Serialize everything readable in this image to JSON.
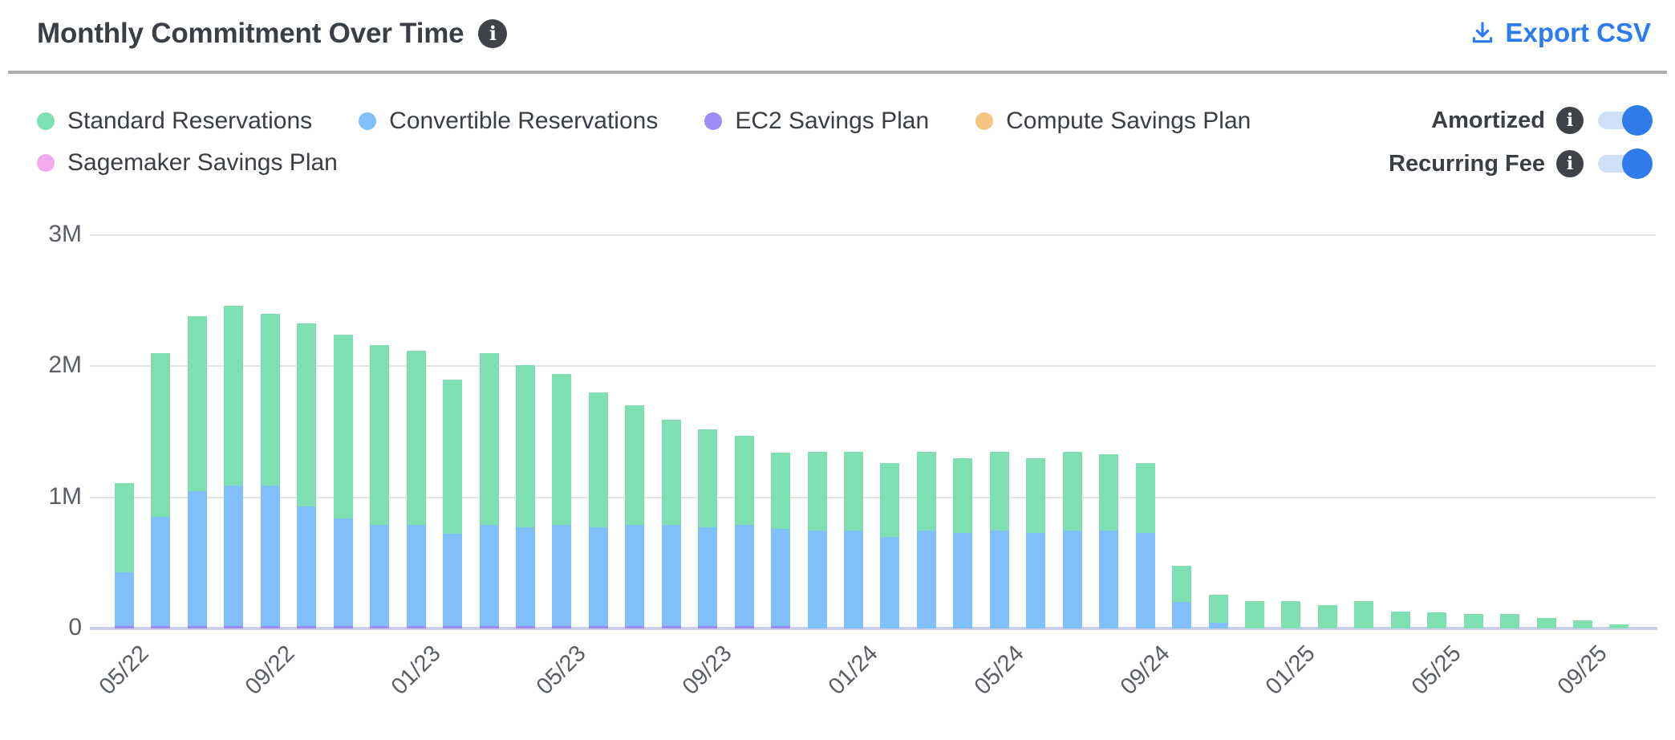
{
  "header": {
    "title": "Monthly Commitment Over Time",
    "export_label": "Export CSV"
  },
  "legend": {
    "items": [
      {
        "label": "Standard Reservations",
        "color": "#7edfb0"
      },
      {
        "label": "Convertible Reservations",
        "color": "#7fbffc"
      },
      {
        "label": "EC2 Savings Plan",
        "color": "#9e8df2"
      },
      {
        "label": "Compute Savings Plan",
        "color": "#f6c581"
      },
      {
        "label": "Sagemaker Savings Plan",
        "color": "#f2a9ee"
      }
    ]
  },
  "toggles": [
    {
      "label": "Amortized",
      "state": "on"
    },
    {
      "label": "Recurring Fee",
      "state": "on"
    }
  ],
  "chart_data": {
    "type": "bar",
    "stacked": true,
    "unit": "millions USD",
    "ylim": [
      0,
      3000000
    ],
    "y_ticks": [
      "0",
      "1M",
      "2M",
      "3M"
    ],
    "grid": "horizontal",
    "legend_position": "top-left",
    "x": [
      "05/22",
      "06/22",
      "07/22",
      "08/22",
      "09/22",
      "10/22",
      "11/22",
      "12/22",
      "01/23",
      "02/23",
      "03/23",
      "04/23",
      "05/23",
      "06/23",
      "07/23",
      "08/23",
      "09/23",
      "10/23",
      "11/23",
      "12/23",
      "01/24",
      "02/24",
      "03/24",
      "04/24",
      "05/24",
      "06/24",
      "07/24",
      "08/24",
      "09/24",
      "10/24",
      "11/24",
      "12/24",
      "01/25",
      "02/25",
      "03/25",
      "04/25",
      "05/25",
      "06/25",
      "07/25",
      "08/25",
      "09/25",
      "10/25"
    ],
    "x_ticks": [
      {
        "index": 0,
        "label": "05/22"
      },
      {
        "index": 4,
        "label": "09/22"
      },
      {
        "index": 8,
        "label": "01/23"
      },
      {
        "index": 12,
        "label": "05/23"
      },
      {
        "index": 16,
        "label": "09/23"
      },
      {
        "index": 20,
        "label": "01/24"
      },
      {
        "index": 24,
        "label": "05/24"
      },
      {
        "index": 28,
        "label": "09/24"
      },
      {
        "index": 32,
        "label": "01/25"
      },
      {
        "index": 36,
        "label": "05/25"
      },
      {
        "index": 40,
        "label": "09/25"
      }
    ],
    "series": [
      {
        "name": "Standard Reservations",
        "color": "#7edfb0",
        "values": [
          0.68,
          1.25,
          1.33,
          1.37,
          1.31,
          1.4,
          1.4,
          1.37,
          1.33,
          1.18,
          1.31,
          1.24,
          1.15,
          1.03,
          0.91,
          0.8,
          0.75,
          0.68,
          0.58,
          0.6,
          0.6,
          0.56,
          0.6,
          0.57,
          0.6,
          0.57,
          0.6,
          0.58,
          0.53,
          0.28,
          0.22,
          0.21,
          0.21,
          0.18,
          0.21,
          0.13,
          0.12,
          0.11,
          0.11,
          0.08,
          0.06,
          0.03
        ]
      },
      {
        "name": "Convertible Reservations",
        "color": "#7fbffc",
        "values": [
          0.41,
          0.83,
          1.03,
          1.07,
          1.07,
          0.91,
          0.82,
          0.77,
          0.77,
          0.7,
          0.77,
          0.75,
          0.77,
          0.75,
          0.77,
          0.77,
          0.75,
          0.77,
          0.74,
          0.75,
          0.75,
          0.7,
          0.75,
          0.73,
          0.75,
          0.73,
          0.75,
          0.75,
          0.73,
          0.2,
          0.04,
          0,
          0,
          0,
          0,
          0,
          0,
          0,
          0,
          0,
          0,
          0
        ]
      },
      {
        "name": "EC2 Savings Plan",
        "color": "#9e8df2",
        "values": [
          0.02,
          0.02,
          0.02,
          0.02,
          0.02,
          0.02,
          0.02,
          0.02,
          0.02,
          0.02,
          0.02,
          0.02,
          0.02,
          0.02,
          0.02,
          0.02,
          0.02,
          0.02,
          0.02,
          0,
          0,
          0,
          0,
          0,
          0,
          0,
          0,
          0,
          0,
          0,
          0,
          0,
          0,
          0,
          0,
          0,
          0,
          0,
          0,
          0,
          0,
          0
        ]
      },
      {
        "name": "Compute Savings Plan",
        "color": "#f6c581",
        "values": [
          0,
          0,
          0,
          0,
          0,
          0,
          0,
          0,
          0,
          0,
          0,
          0,
          0,
          0,
          0,
          0,
          0,
          0,
          0,
          0,
          0,
          0,
          0,
          0,
          0,
          0,
          0,
          0,
          0,
          0,
          0,
          0,
          0,
          0,
          0,
          0,
          0,
          0,
          0,
          0,
          0,
          0
        ]
      },
      {
        "name": "Sagemaker Savings Plan",
        "color": "#f2a9ee",
        "values": [
          0,
          0,
          0,
          0,
          0,
          0,
          0,
          0,
          0,
          0,
          0,
          0,
          0,
          0,
          0,
          0,
          0,
          0,
          0,
          0,
          0,
          0,
          0,
          0,
          0,
          0,
          0,
          0,
          0,
          0,
          0,
          0,
          0,
          0,
          0,
          0,
          0,
          0,
          0,
          0,
          0,
          0
        ]
      }
    ]
  }
}
